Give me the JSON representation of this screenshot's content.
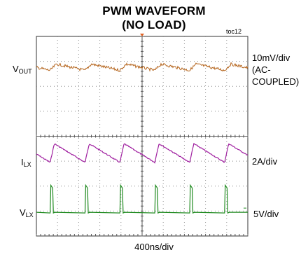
{
  "chart_data": {
    "type": "line",
    "title": [
      "PWM WAVEFORM",
      "(NO LOAD)"
    ],
    "figure_id": "toc12",
    "xlabel": "400ns/div",
    "x_divisions": 10,
    "y_divisions": 8,
    "grid": true,
    "series": [
      {
        "name": "VOUT",
        "label_main": "V",
        "label_sub": "OUT",
        "scale_lines": [
          "10mV/div",
          "(AC-",
          "COUPLED)"
        ],
        "color": "#b5651d"
      },
      {
        "name": "ILX",
        "label_main": "I",
        "label_sub": "LX",
        "scale_lines": [
          "2A/div"
        ],
        "color": "#a020a0"
      },
      {
        "name": "VLX",
        "label_main": "V",
        "label_sub": "LX",
        "scale_lines": [
          "5V/div"
        ],
        "color": "#1f8a1f"
      }
    ],
    "switching_period_divs": 1.65,
    "pulse_width_divs": 0.12
  }
}
